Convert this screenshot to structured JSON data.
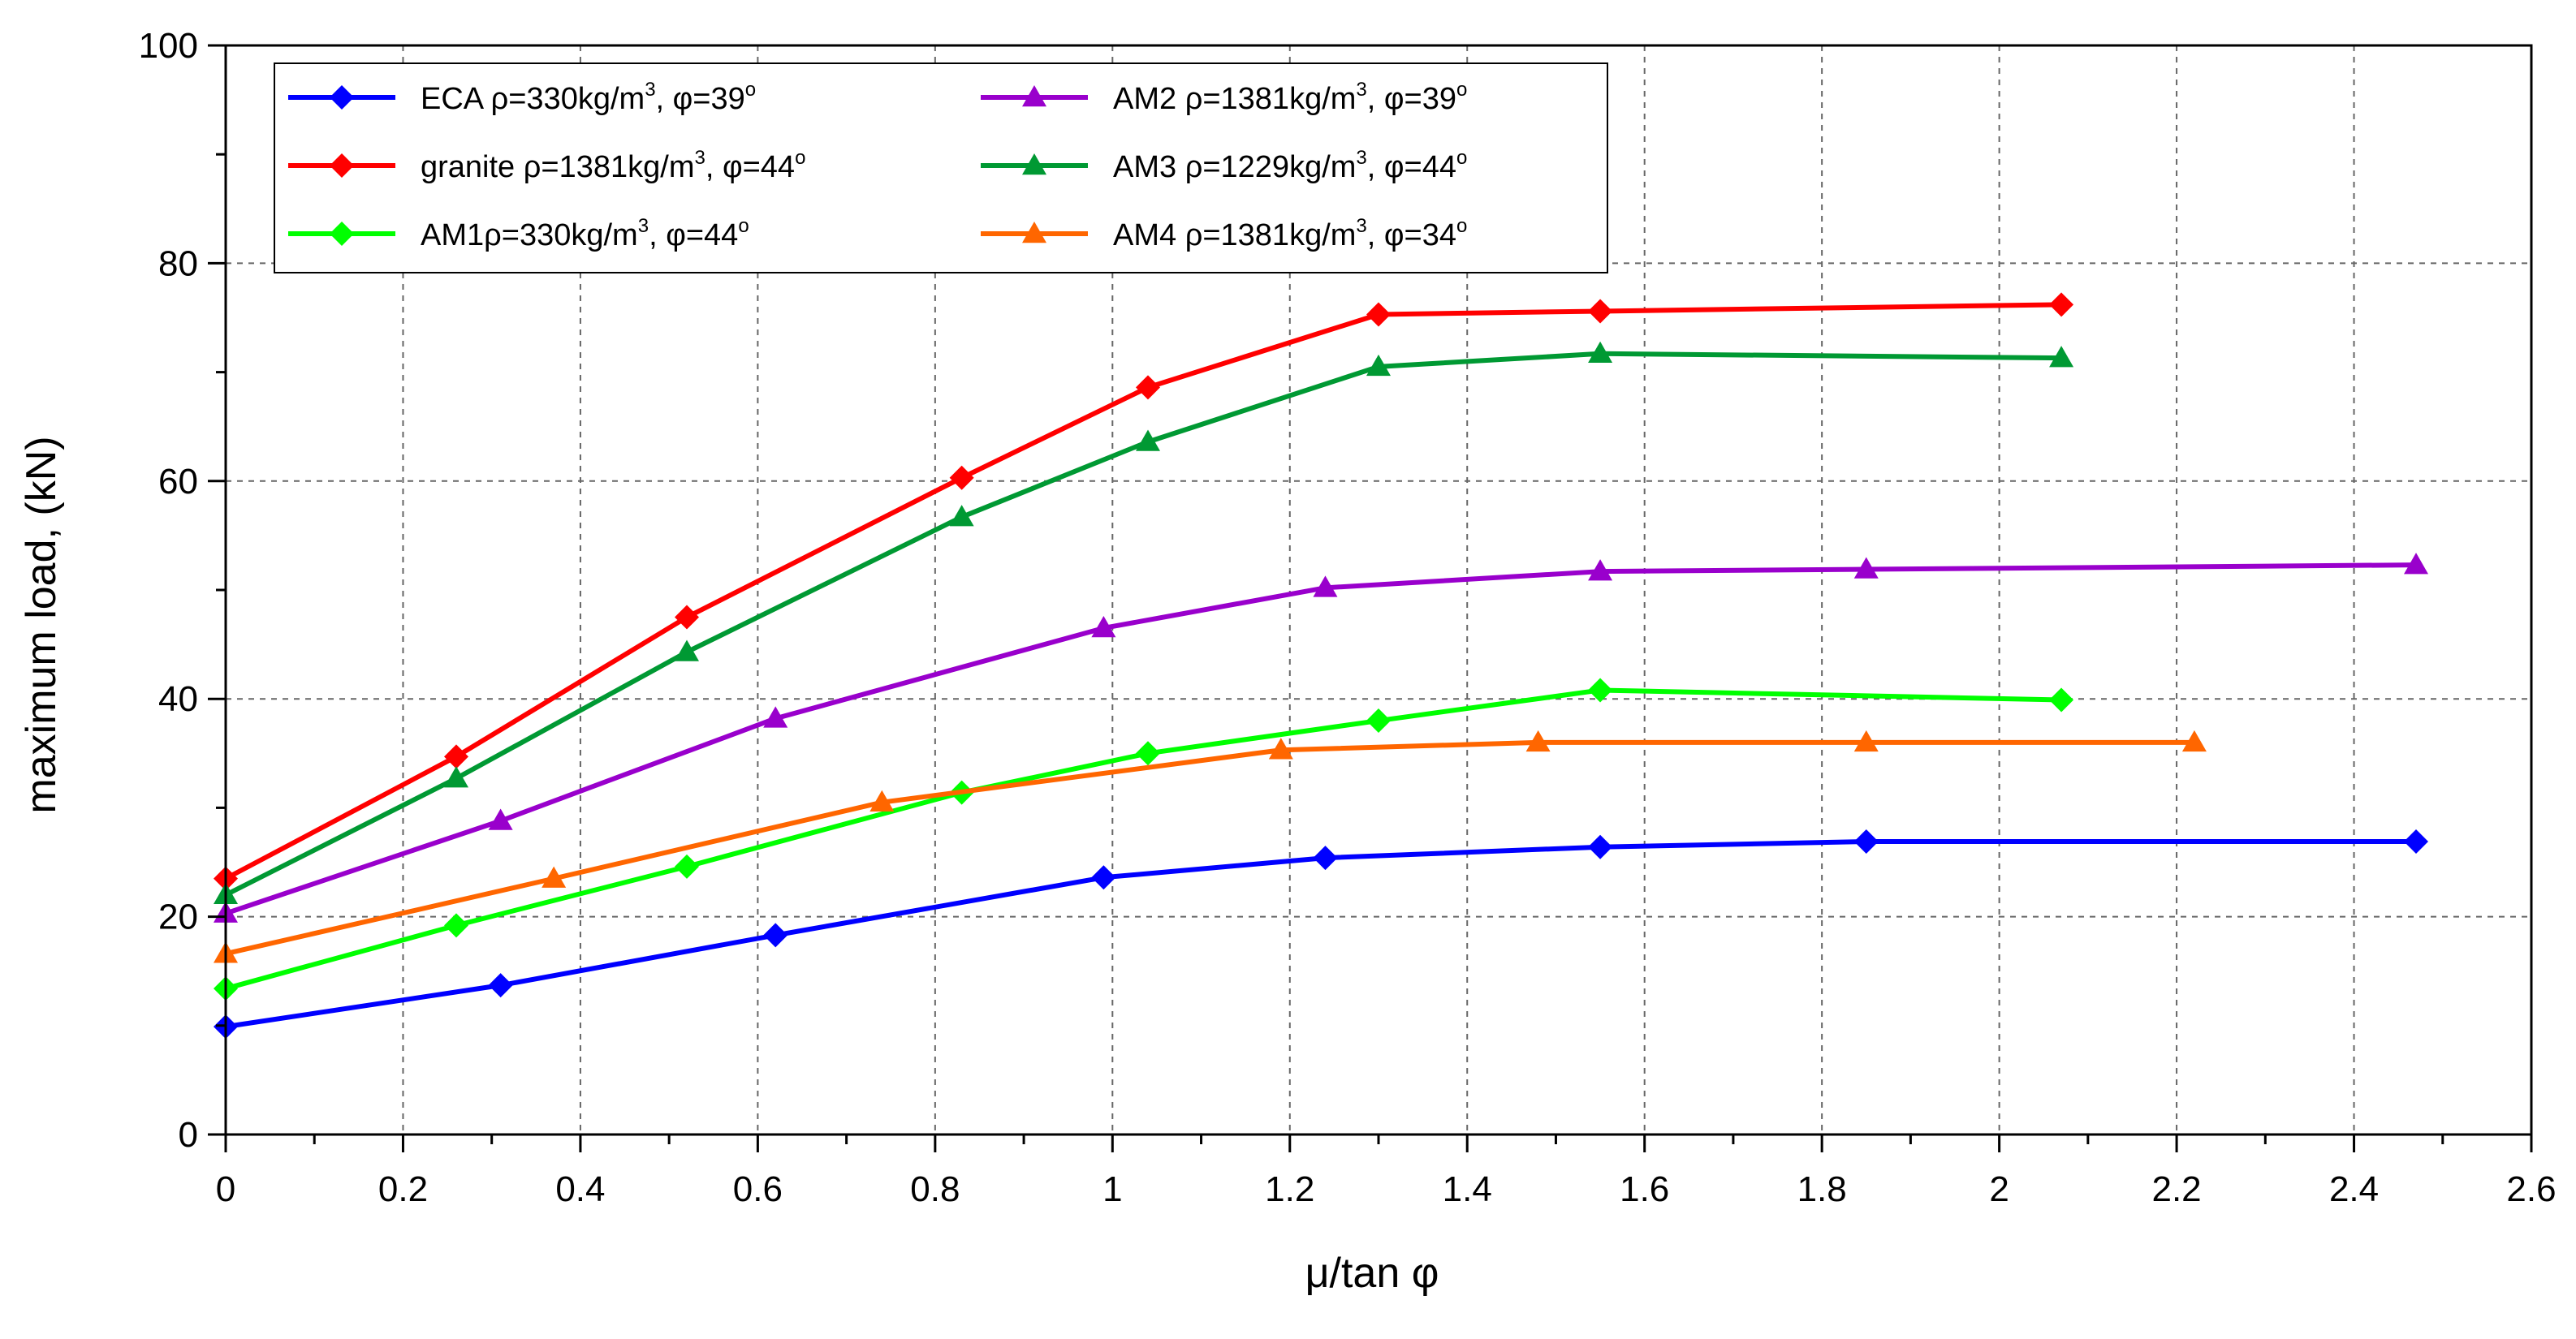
{
  "chart_data": {
    "type": "line",
    "title": "",
    "xlabel": "μ/tan φ",
    "ylabel": "maximum load, (kN)",
    "xlim": [
      0,
      2.6
    ],
    "ylim": [
      0,
      100
    ],
    "x_ticks": [
      0,
      0.2,
      0.4,
      0.6,
      0.8,
      1,
      1.2,
      1.4,
      1.6,
      1.8,
      2,
      2.2,
      2.4,
      2.6
    ],
    "x_tick_labels": [
      "0",
      "0.2",
      "0.4",
      "0.6",
      "0.8",
      "1",
      "1.2",
      "1.4",
      "1.6",
      "1.8",
      "2",
      "2.2",
      "2.4",
      "2.6"
    ],
    "y_ticks": [
      0,
      20,
      40,
      60,
      80,
      100
    ],
    "y_tick_labels": [
      "0",
      "20",
      "40",
      "60",
      "80",
      "100"
    ],
    "grid": true,
    "legend_position": "top-left",
    "series": [
      {
        "id": "eca",
        "name": "ECA",
        "rho": "330",
        "phi": "39",
        "color": "#0000ff",
        "marker": "diamond",
        "x": [
          0,
          0.31,
          0.62,
          0.99,
          1.24,
          1.55,
          1.85,
          2.47
        ],
        "y": [
          9.9,
          13.7,
          18.3,
          23.6,
          25.4,
          26.4,
          26.9,
          26.9
        ]
      },
      {
        "id": "granite",
        "name": "granite",
        "rho": "1381",
        "phi": "44",
        "color": "#ff0000",
        "marker": "diamond",
        "x": [
          0,
          0.26,
          0.52,
          0.83,
          1.04,
          1.3,
          1.55,
          2.07
        ],
        "y": [
          23.5,
          34.7,
          47.5,
          60.3,
          68.6,
          75.3,
          75.6,
          76.2
        ]
      },
      {
        "id": "am1",
        "name": "AM1",
        "rho": "330",
        "phi": "44",
        "color": "#00ff00",
        "marker": "diamond",
        "x": [
          0,
          0.26,
          0.52,
          0.83,
          1.04,
          1.3,
          1.55,
          2.07
        ],
        "y": [
          13.4,
          19.2,
          24.6,
          31.4,
          35.0,
          38.0,
          40.8,
          39.9
        ]
      },
      {
        "id": "am2",
        "name": "AM2",
        "rho": "1381",
        "phi": "39",
        "color": "#9900cc",
        "marker": "triangle",
        "x": [
          0,
          0.31,
          0.62,
          0.99,
          1.24,
          1.55,
          1.85,
          2.47
        ],
        "y": [
          20.3,
          28.8,
          38.2,
          46.5,
          50.2,
          51.7,
          51.9,
          52.3
        ]
      },
      {
        "id": "am3",
        "name": "AM3",
        "rho": "1229",
        "phi": "44",
        "color": "#009933",
        "marker": "triangle",
        "x": [
          0,
          0.26,
          0.52,
          0.83,
          1.04,
          1.3,
          1.55,
          2.07
        ],
        "y": [
          22.0,
          32.7,
          44.3,
          56.7,
          63.6,
          70.5,
          71.7,
          71.3
        ]
      },
      {
        "id": "am4",
        "name": "AM4",
        "rho": "1381",
        "phi": "34",
        "color": "#ff6600",
        "marker": "triangle",
        "x": [
          0,
          0.37,
          0.74,
          1.19,
          1.48,
          1.85,
          2.22
        ],
        "y": [
          16.6,
          23.5,
          30.5,
          35.3,
          36.0,
          36.0,
          36.0
        ]
      }
    ]
  }
}
